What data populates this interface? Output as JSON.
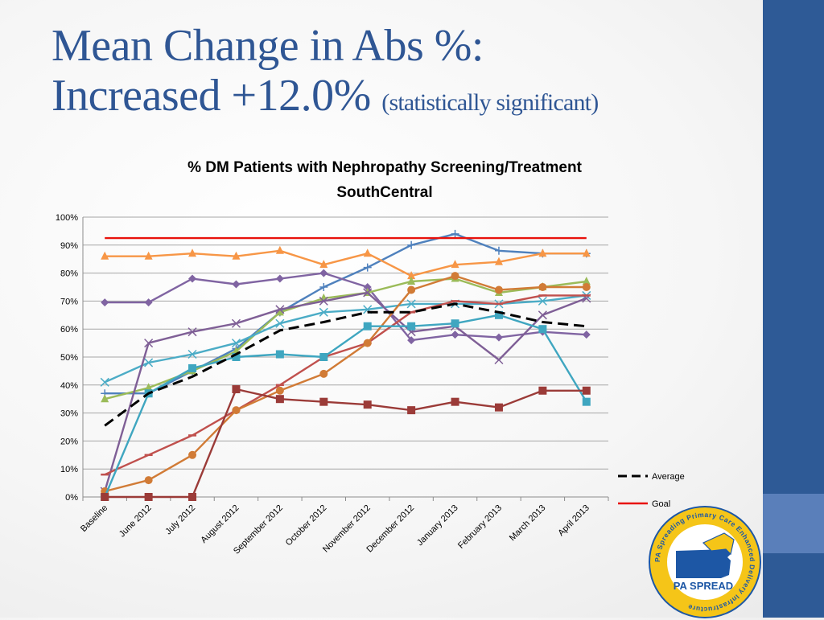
{
  "slide": {
    "title_line1": "Mean Change in Abs %:",
    "title_line2": "Increased +12.0%",
    "title_note": "(statistically significant)"
  },
  "logo": {
    "badge_text": "PA SPREAD",
    "ring_text": "PA Spreading Primary Care Enhanced Delivery Infrastructure"
  },
  "colors": {
    "sidebar": "#2e5a96",
    "sidebar_accent": "#5a7fba",
    "title": "#2f5694"
  },
  "chart_data": {
    "type": "line",
    "title": "% DM Patients with Nephropathy Screening/Treatment",
    "subtitle": "SouthCentral",
    "ylim": [
      0,
      100
    ],
    "y_ticks": [
      "0%",
      "10%",
      "20%",
      "30%",
      "40%",
      "50%",
      "60%",
      "70%",
      "80%",
      "90%",
      "100%"
    ],
    "grid": true,
    "legend_position": "right-bottom",
    "categories": [
      "Baseline",
      "June 2012",
      "July 2012",
      "August 2012",
      "September 2012",
      "October 2012",
      "November 2012",
      "December 2012",
      "January 2013",
      "February 2013",
      "March 2013",
      "April 2013"
    ],
    "series": [
      {
        "color": "#4f81bd",
        "marker": "plus",
        "values": [
          37,
          37,
          45,
          53,
          66,
          75,
          82,
          90,
          94,
          88,
          87,
          87
        ]
      },
      {
        "color": "#f79646",
        "marker": "triangle",
        "values": [
          86,
          86,
          87,
          86,
          88,
          83,
          87,
          79,
          83,
          84,
          87,
          87
        ]
      },
      {
        "color": "#8064a2",
        "marker": "diamond",
        "values": [
          69.5,
          69.5,
          78,
          76,
          78,
          80,
          75,
          56,
          58,
          57,
          59,
          58
        ]
      },
      {
        "color": "#9bbb59",
        "marker": "triangle",
        "values": [
          35,
          39,
          45,
          52,
          66,
          71,
          73,
          77,
          78,
          73,
          75,
          77
        ]
      },
      {
        "color": "#4bacc6",
        "marker": "x",
        "values": [
          41,
          48,
          51,
          55,
          62,
          66,
          67,
          69,
          69,
          69,
          70,
          72
        ]
      },
      {
        "color": "#7f5f96",
        "marker": "x",
        "values": [
          2,
          55,
          59,
          62,
          67,
          70,
          73,
          59,
          61,
          49,
          65,
          71
        ]
      },
      {
        "color": "#c0504d",
        "marker": "dash",
        "values": [
          8,
          15,
          22,
          31,
          40,
          50,
          55,
          66,
          70,
          69,
          72,
          72
        ]
      },
      {
        "color": "#d17b36",
        "marker": "circle",
        "values": [
          2,
          6,
          15,
          31,
          38,
          44,
          55,
          74,
          79,
          74,
          75,
          75
        ]
      },
      {
        "color": "#3fa6c0",
        "marker": "square",
        "values": [
          0,
          37,
          46,
          50,
          51,
          50,
          61,
          61,
          62,
          65,
          60,
          34
        ]
      },
      {
        "color": "#9b3b38",
        "marker": "square",
        "values": [
          0,
          0,
          0,
          38.5,
          35,
          34,
          33,
          31,
          34,
          32,
          38,
          38
        ]
      },
      {
        "name": "Average",
        "color": "#000000",
        "dashed": true,
        "values": [
          25.5,
          37,
          43,
          51,
          59.5,
          62.5,
          66,
          66,
          69,
          66,
          62.5,
          61
        ]
      },
      {
        "name": "Goal",
        "color": "#e8120c",
        "values": [
          92.5,
          92.5,
          92.5,
          92.5,
          92.5,
          92.5,
          92.5,
          92.5,
          92.5,
          92.5,
          92.5,
          92.5
        ]
      }
    ]
  }
}
